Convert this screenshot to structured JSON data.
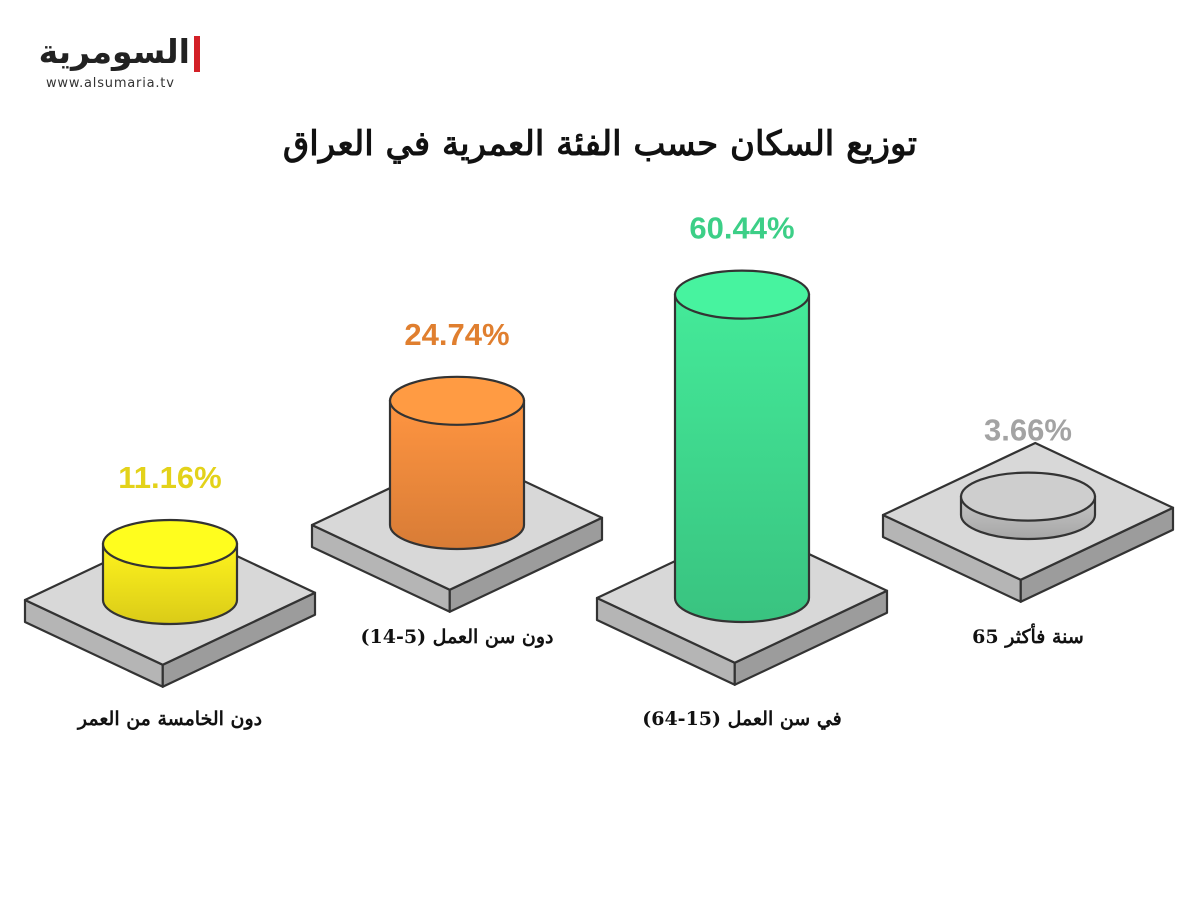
{
  "brand": {
    "name": "السومرية",
    "url": "www.alsumaria.tv"
  },
  "chart_data": {
    "type": "bar",
    "title": "توزيع السكان حسب الفئة العمرية في العراق",
    "categories": [
      "دون الخامسة من العمر",
      "دون سن العمل (5-14)",
      "في سن العمل (15-64)",
      "سنة فأكثر 65"
    ],
    "values": [
      11.16,
      24.74,
      60.44,
      3.66
    ],
    "value_labels": [
      "11.16%",
      "24.74%",
      "60.44%",
      "3.66%"
    ],
    "colors": [
      "#f2e21b",
      "#f08a3c",
      "#3fd98e",
      "#b8b8b8"
    ],
    "label_colors": [
      "#e3d21a",
      "#e07f2f",
      "#3ccf87",
      "#a3a3a3"
    ],
    "unit": "%"
  }
}
